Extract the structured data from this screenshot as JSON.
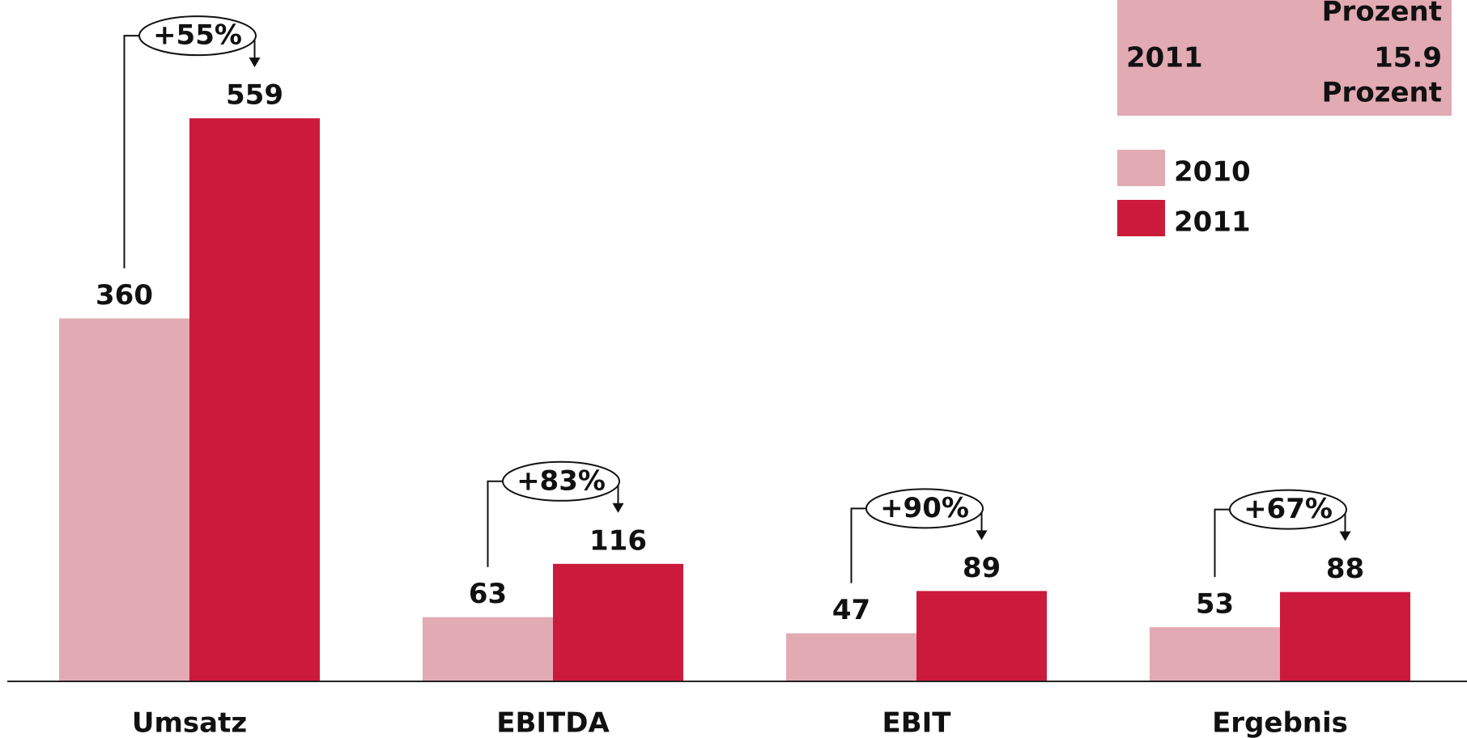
{
  "chart_data": {
    "type": "bar",
    "categories": [
      "Umsatz",
      "EBITDA",
      "EBIT",
      "Ergebnis"
    ],
    "series": [
      {
        "name": "2010",
        "color": "#e2aab3",
        "values": [
          360,
          63,
          47,
          53
        ]
      },
      {
        "name": "2011",
        "color": "#cc1a3c",
        "values": [
          559,
          116,
          89,
          88
        ]
      }
    ],
    "change_labels": [
      "+55%",
      "+83%",
      "+90%",
      "+67%"
    ],
    "info_box": {
      "header": "Prozent",
      "year": "2011",
      "value": 15.9,
      "unit": "Prozent",
      "color": "#e2aab3"
    }
  }
}
